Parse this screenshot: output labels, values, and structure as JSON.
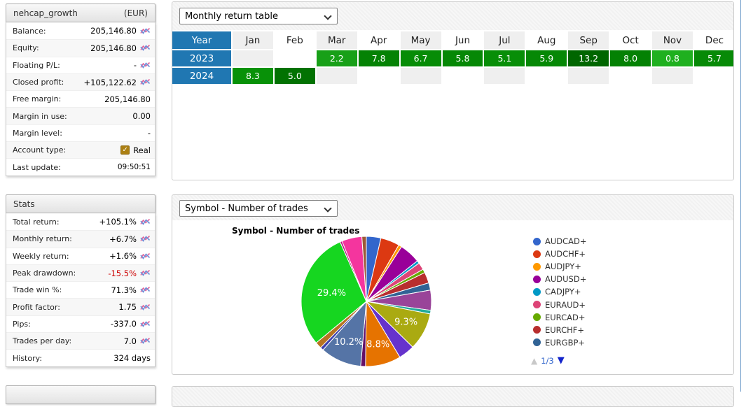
{
  "account_panel": {
    "title": "nehcap_growth",
    "currency": "(EUR)",
    "rows": [
      {
        "label": "Balance:",
        "value": "205,146.80",
        "icon": true
      },
      {
        "label": "Equity:",
        "value": "205,146.80",
        "icon": true
      },
      {
        "label": "Floating P/L:",
        "value": "-",
        "icon": true
      },
      {
        "label": "Closed profit:",
        "value": "+105,122.62",
        "icon": true
      },
      {
        "label": "Free margin:",
        "value": "205,146.80",
        "icon": false
      },
      {
        "label": "Margin in use:",
        "value": "0.00",
        "icon": false
      },
      {
        "label": "Margin level:",
        "value": "-",
        "icon": false
      },
      {
        "label": "Account type:",
        "value": "Real",
        "icon": false,
        "checkbox": true
      },
      {
        "label": "Last update:",
        "value": "09:50:51",
        "icon": false,
        "small": true
      }
    ]
  },
  "stats_panel": {
    "title": "Stats",
    "rows": [
      {
        "label": "Total return:",
        "value": "+105.1%",
        "icon": true
      },
      {
        "label": "Monthly return:",
        "value": "+6.7%",
        "icon": true
      },
      {
        "label": "Weekly return:",
        "value": "+1.6%",
        "icon": true
      },
      {
        "label": "Peak drawdown:",
        "value": "-15.5%",
        "icon": true,
        "negative": true
      },
      {
        "label": "Trade win %:",
        "value": "71.3%",
        "icon": true
      },
      {
        "label": "Profit factor:",
        "value": "1.75",
        "icon": true
      },
      {
        "label": "Pips:",
        "value": "-337.0",
        "icon": true
      },
      {
        "label": "Trades per day:",
        "value": "7.0",
        "icon": true
      },
      {
        "label": "History:",
        "value": "324 days",
        "icon": false
      }
    ]
  },
  "monthly_panel": {
    "selected_view": "Monthly return table"
  },
  "symbol_panel": {
    "selected_view": "Symbol - Number of trades",
    "pager_label": "1/3"
  },
  "icons": {
    "chart_edit": "mini-line-chart (blue+pink zigzag)",
    "dropdown": "chevron-down",
    "page_up": "▲",
    "page_down": "▼",
    "checkbox_check": "✓"
  },
  "colors": {
    "year_header_bg": "#2077b2",
    "column_stripe": "#efefef",
    "negative_value": "#cc0000",
    "pager_active": "#1324cb",
    "pager_inactive": "#c9c9c9",
    "scroll_line": "#74a0cc"
  },
  "chart_data": [
    {
      "type": "table",
      "title": "Monthly return table",
      "columns": [
        "Year",
        "Jan",
        "Feb",
        "Mar",
        "Apr",
        "May",
        "Jun",
        "Jul",
        "Aug",
        "Sep",
        "Oct",
        "Nov",
        "Dec"
      ],
      "rows": [
        {
          "year": "2023",
          "cells": [
            null,
            null,
            {
              "v": "2.2",
              "c": "#18a018"
            },
            {
              "v": "7.8",
              "c": "#058205"
            },
            {
              "v": "6.7",
              "c": "#078c07"
            },
            {
              "v": "5.8",
              "c": "#068806"
            },
            {
              "v": "5.1",
              "c": "#088e08"
            },
            {
              "v": "5.9",
              "c": "#068806"
            },
            {
              "v": "13.2",
              "c": "#006600"
            },
            {
              "v": "8.0",
              "c": "#048104"
            },
            {
              "v": "0.8",
              "c": "#1fb01f"
            },
            {
              "v": "5.7",
              "c": "#078a07"
            }
          ]
        },
        {
          "year": "2024",
          "cells": [
            {
              "v": "8.3",
              "c": "#089108"
            },
            {
              "v": "5.0",
              "c": "#027202"
            },
            null,
            null,
            null,
            null,
            null,
            null,
            null,
            null,
            null,
            null
          ]
        }
      ]
    },
    {
      "type": "pie",
      "title": "Symbol - Number of trades",
      "legend_position": "right",
      "legend": {
        "entries": [
          {
            "label": "AUDCAD+",
            "color": "#3366cc"
          },
          {
            "label": "AUDCHF+",
            "color": "#dc3912"
          },
          {
            "label": "AUDJPY+",
            "color": "#ff9900"
          },
          {
            "label": "AUDUSD+",
            "color": "#990099"
          },
          {
            "label": "CADJPY+",
            "color": "#0099c6"
          },
          {
            "label": "EURAUD+",
            "color": "#dd4477"
          },
          {
            "label": "EURCAD+",
            "color": "#66aa00"
          },
          {
            "label": "EURCHF+",
            "color": "#b82e2e"
          },
          {
            "label": "EURGBP+",
            "color": "#316395"
          }
        ],
        "page": "1/3"
      },
      "slices": [
        {
          "color": "#3366cc",
          "pct": 3.6
        },
        {
          "color": "#dc3912",
          "pct": 4.7
        },
        {
          "color": "#ff9900",
          "pct": 0.8
        },
        {
          "color": "#990099",
          "pct": 5.2
        },
        {
          "color": "#0099c6",
          "pct": 0.7
        },
        {
          "color": "#dd4477",
          "pct": 1.8
        },
        {
          "color": "#66aa00",
          "pct": 0.9
        },
        {
          "color": "#b82e2e",
          "pct": 2.7
        },
        {
          "color": "#316395",
          "pct": 1.8
        },
        {
          "color": "#994499",
          "pct": 5.0
        },
        {
          "color": "#22aa99",
          "pct": 0.9
        },
        {
          "color": "#aaaa11",
          "pct": 9.3,
          "label": "9.3%"
        },
        {
          "color": "#6633cc",
          "pct": 4.0
        },
        {
          "color": "#e67300",
          "pct": 8.8,
          "label": "8.8%"
        },
        {
          "color": "#651067",
          "pct": 1.2
        },
        {
          "color": "#5574a6",
          "pct": 10.2,
          "label": "10.2%"
        },
        {
          "color": "#3b3eac",
          "pct": 0.8
        },
        {
          "color": "#b77322",
          "pct": 1.6
        },
        {
          "color": "#16d620",
          "pct": 29.4,
          "label": "29.4%"
        },
        {
          "color": "#b91383",
          "pct": 0.5
        },
        {
          "color": "#f4359e",
          "pct": 5.0
        },
        {
          "color": "#9c5935",
          "pct": 1.1
        }
      ]
    }
  ]
}
